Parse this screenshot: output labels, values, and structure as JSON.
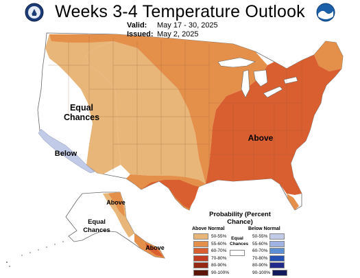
{
  "header": {
    "title": "Weeks 3-4 Temperature Outlook",
    "valid_label": "Valid:",
    "valid_value": "May 17 - 30, 2025",
    "issued_label": "Issued:",
    "issued_value": "May 2, 2025"
  },
  "logos": {
    "left": "doc-seal",
    "right": "noaa-logo"
  },
  "map_labels": {
    "equal_chances": "Equal Chances",
    "above": "Above",
    "below": "Below",
    "ak_above": "Above",
    "ak_equal_chances": "Equal Chances",
    "ak_above_se": "Above"
  },
  "legend": {
    "title": "Probability (Percent Chance)",
    "above_header": "Above Normal",
    "below_header": "Below Normal",
    "equal_chances": "Equal Chances",
    "above_levels": [
      "50-55%",
      "55-60%",
      "60-70%",
      "70-80%",
      "80-90%",
      "90-100%"
    ],
    "below_levels": [
      "50-55%",
      "55-60%",
      "60-70%",
      "70-80%",
      "80-90%",
      "90-100%"
    ],
    "above_colors": [
      "#e8b679",
      "#e5904a",
      "#da5f30",
      "#c23d22",
      "#952914",
      "#5c1608"
    ],
    "below_colors": [
      "#c1cbe7",
      "#9fb3e3",
      "#5d8fd4",
      "#244fb3",
      "#212a8a",
      "#131a5a"
    ]
  }
}
